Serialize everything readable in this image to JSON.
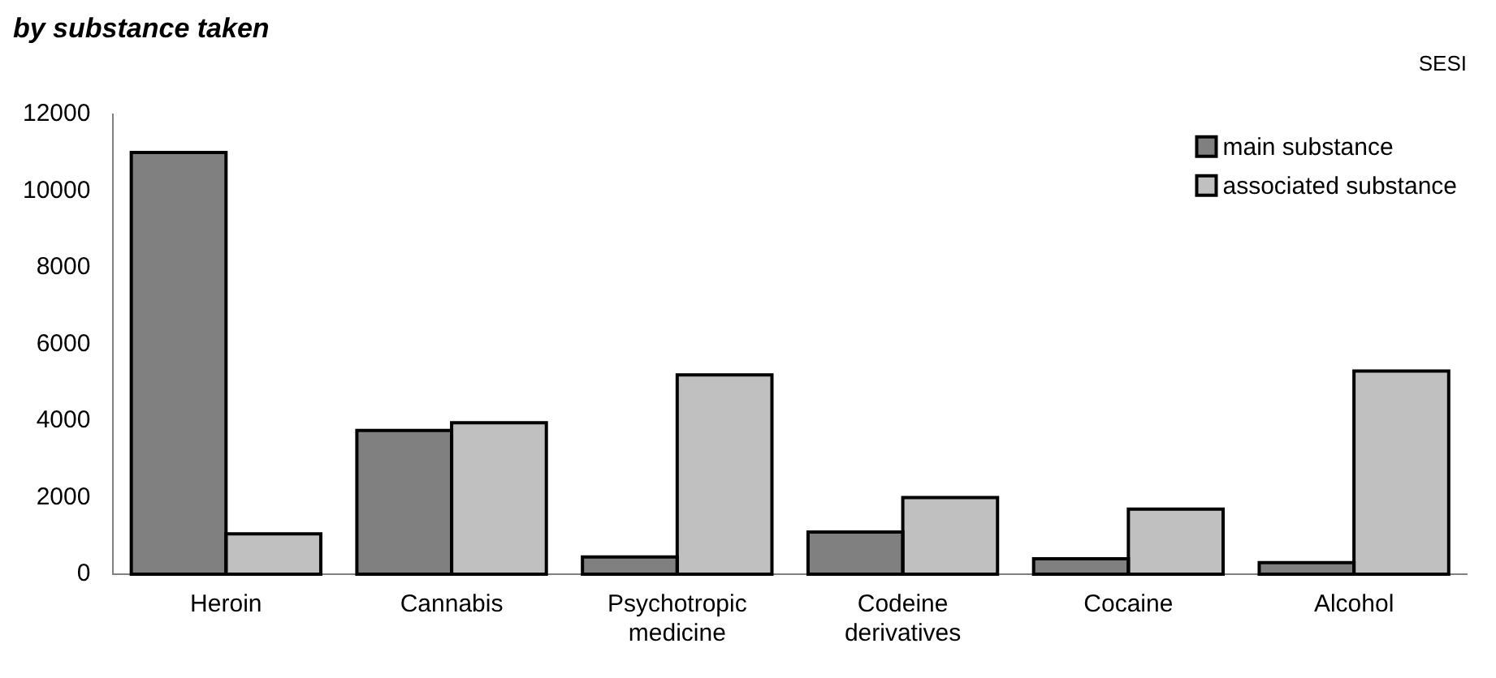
{
  "chart_data": {
    "type": "bar",
    "title": "by substance taken",
    "annotations": [
      "SESI"
    ],
    "categories": [
      "Heroin",
      "Cannabis",
      "Psychotropic medicine",
      "Codeine derivatives",
      "Cocaine",
      "Alcohol"
    ],
    "series": [
      {
        "name": "main substance",
        "color": "#808080",
        "values": [
          11000,
          3750,
          450,
          1100,
          400,
          300
        ]
      },
      {
        "name": "associated substance",
        "color": "#c0c0c0",
        "values": [
          1050,
          3950,
          5200,
          2000,
          1700,
          5300
        ]
      }
    ],
    "ylim": [
      0,
      12000
    ],
    "yticks": [
      0,
      2000,
      4000,
      6000,
      8000,
      10000,
      12000
    ],
    "grid": false,
    "legend": "top right"
  }
}
